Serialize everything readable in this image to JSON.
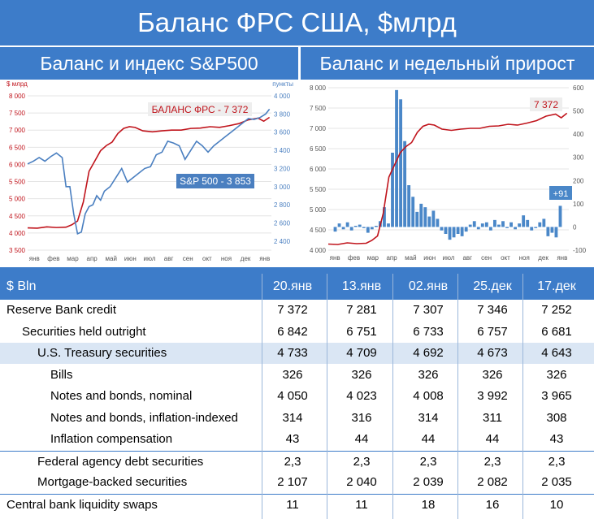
{
  "title": "Баланс ФРС США, $млрд",
  "left_header": "Баланс и индекс S&P500",
  "right_header": "Баланс и недельный прирост",
  "colors": {
    "banner": "#3d7cc9",
    "balance_line": "#c0141c",
    "sp_line": "#4a7fc0",
    "bars": "#4a87c8"
  },
  "chart_data": [
    {
      "type": "line",
      "y_unit_left": "$ млрд",
      "y_unit_right": "пункты",
      "yleft_ticks": [
        "3 500",
        "4 000",
        "4 500",
        "5 000",
        "5 500",
        "6 000",
        "6 500",
        "7 000",
        "7 500",
        "8 000"
      ],
      "yleft_lim": [
        3500,
        8000
      ],
      "yright_ticks": [
        "2 400",
        "2 600",
        "2 800",
        "3 000",
        "3 200",
        "3 400",
        "3 600",
        "3 800",
        "4 000"
      ],
      "yright_lim": [
        2300,
        4000
      ],
      "x_ticks": [
        "янв",
        "фев",
        "мар",
        "апр",
        "май",
        "июн",
        "июл",
        "авг",
        "сен",
        "окт",
        "ноя",
        "дек",
        "янв"
      ],
      "x_range": [
        0,
        12.7
      ],
      "grid": true,
      "series": [
        {
          "name": "БАЛАНС ФРС - 7 372",
          "axis": "left",
          "color": "#c0141c",
          "x": [
            0,
            0.5,
            1,
            1.5,
            2,
            2.3,
            2.6,
            2.9,
            3.2,
            3.5,
            3.8,
            4.1,
            4.4,
            4.7,
            5,
            5.3,
            5.6,
            6,
            6.5,
            7,
            7.5,
            8,
            8.5,
            9,
            9.5,
            10,
            10.5,
            11,
            11.5,
            12,
            12.3,
            12.6
          ],
          "y": [
            4150,
            4140,
            4180,
            4160,
            4170,
            4240,
            4350,
            4900,
            5800,
            6100,
            6400,
            6550,
            6650,
            6900,
            7050,
            7100,
            7080,
            6980,
            6950,
            6980,
            7000,
            7000,
            7050,
            7060,
            7100,
            7080,
            7130,
            7190,
            7300,
            7350,
            7260,
            7372
          ]
        },
        {
          "name": "S&P 500 - 3 853",
          "axis": "right",
          "color": "#4a7fc0",
          "x": [
            0,
            0.3,
            0.6,
            0.9,
            1.2,
            1.5,
            1.8,
            2.0,
            2.2,
            2.4,
            2.6,
            2.8,
            3.0,
            3.2,
            3.4,
            3.6,
            3.8,
            4.0,
            4.3,
            4.6,
            4.9,
            5.2,
            5.5,
            5.8,
            6.1,
            6.4,
            6.7,
            7.0,
            7.3,
            7.6,
            7.9,
            8.2,
            8.5,
            8.8,
            9.1,
            9.4,
            9.7,
            10.0,
            10.3,
            10.6,
            10.9,
            11.2,
            11.5,
            11.8,
            12.1,
            12.4,
            12.6
          ],
          "y": [
            3250,
            3280,
            3320,
            3280,
            3330,
            3370,
            3320,
            3000,
            3000,
            2700,
            2480,
            2500,
            2700,
            2780,
            2800,
            2900,
            2850,
            2950,
            3000,
            3100,
            3200,
            3050,
            3100,
            3150,
            3200,
            3220,
            3350,
            3380,
            3500,
            3480,
            3450,
            3300,
            3400,
            3500,
            3450,
            3380,
            3450,
            3500,
            3550,
            3600,
            3650,
            3700,
            3750,
            3740,
            3760,
            3800,
            3853
          ]
        }
      ]
    },
    {
      "type": "bar",
      "y_unit_left": "",
      "yleft_ticks": [
        "4 000",
        "4 500",
        "5 000",
        "5 500",
        "6 000",
        "6 500",
        "7 000",
        "7 500",
        "8 000"
      ],
      "yleft_lim": [
        4000,
        8000
      ],
      "yright_ticks": [
        "-100",
        "0",
        "100",
        "200",
        "300",
        "400",
        "500",
        "600"
      ],
      "yright_lim": [
        -100,
        600
      ],
      "x_ticks": [
        "янв",
        "фев",
        "мар",
        "апр",
        "май",
        "июн",
        "июл",
        "авг",
        "сен",
        "окт",
        "ноя",
        "дек",
        "янв"
      ],
      "x_range": [
        0,
        12.7
      ],
      "grid": true,
      "series": [
        {
          "name": "7 372",
          "axis": "left",
          "color": "#c0141c",
          "x": [
            0,
            0.5,
            1,
            1.5,
            2,
            2.3,
            2.6,
            2.9,
            3.2,
            3.5,
            3.8,
            4.1,
            4.4,
            4.7,
            5,
            5.3,
            5.6,
            6,
            6.5,
            7,
            7.5,
            8,
            8.5,
            9,
            9.5,
            10,
            10.5,
            11,
            11.5,
            12,
            12.3,
            12.6
          ],
          "y": [
            4150,
            4140,
            4180,
            4160,
            4170,
            4240,
            4350,
            4900,
            5800,
            6100,
            6400,
            6550,
            6650,
            6900,
            7050,
            7100,
            7080,
            6980,
            6950,
            6980,
            7000,
            7000,
            7050,
            7060,
            7100,
            7080,
            7130,
            7190,
            7300,
            7350,
            7260,
            7372
          ]
        },
        {
          "name": "+91",
          "axis": "right",
          "color": "#4a87c8",
          "values": [
            -20,
            15,
            -10,
            20,
            -15,
            5,
            10,
            -5,
            -25,
            -10,
            5,
            25,
            85,
            15,
            320,
            590,
            550,
            370,
            180,
            130,
            65,
            100,
            85,
            45,
            70,
            35,
            -15,
            -30,
            -55,
            -45,
            -30,
            -40,
            -20,
            10,
            25,
            -10,
            15,
            20,
            -15,
            30,
            10,
            25,
            -5,
            20,
            -10,
            15,
            50,
            30,
            -15,
            -5,
            20,
            35,
            -40,
            -25,
            -45,
            91
          ]
        }
      ]
    }
  ],
  "table": {
    "header_label": "$ Bln",
    "columns": [
      "20.янв",
      "13.янв",
      "02.янв",
      "25.дек",
      "17.дек"
    ],
    "rows": [
      {
        "label": "Reserve Bank credit",
        "indent": 0,
        "values": [
          "7 372",
          "7 281",
          "7 307",
          "7 346",
          "7 252"
        ]
      },
      {
        "label": "Securities held outright",
        "indent": 1,
        "values": [
          "6 842",
          "6 751",
          "6 733",
          "6 757",
          "6 681"
        ]
      },
      {
        "label": "U.S. Treasury securities",
        "indent": 2,
        "values": [
          "4 733",
          "4 709",
          "4 692",
          "4 673",
          "4 643"
        ]
      },
      {
        "label": "Bills",
        "indent": 3,
        "values": [
          "326",
          "326",
          "326",
          "326",
          "326"
        ]
      },
      {
        "label": "Notes and bonds, nominal",
        "indent": 3,
        "values": [
          "4 050",
          "4 023",
          "4 008",
          "3 992",
          "3 965"
        ]
      },
      {
        "label": "Notes and bonds, inflation-indexed",
        "indent": 3,
        "values": [
          "314",
          "316",
          "314",
          "311",
          "308"
        ]
      },
      {
        "label": "Inflation compensation",
        "indent": 3,
        "values": [
          "43",
          "44",
          "44",
          "44",
          "43"
        ]
      },
      {
        "label": "Federal agency debt securities",
        "indent": 2,
        "values": [
          "2,3",
          "2,3",
          "2,3",
          "2,3",
          "2,3"
        ]
      },
      {
        "label": "Mortgage-backed securities",
        "indent": 2,
        "values": [
          "2 107",
          "2 040",
          "2 039",
          "2 082",
          "2 035"
        ]
      },
      {
        "label": "Central bank liquidity swaps",
        "indent": 0,
        "values": [
          "11",
          "11",
          "18",
          "16",
          "10"
        ]
      }
    ]
  }
}
